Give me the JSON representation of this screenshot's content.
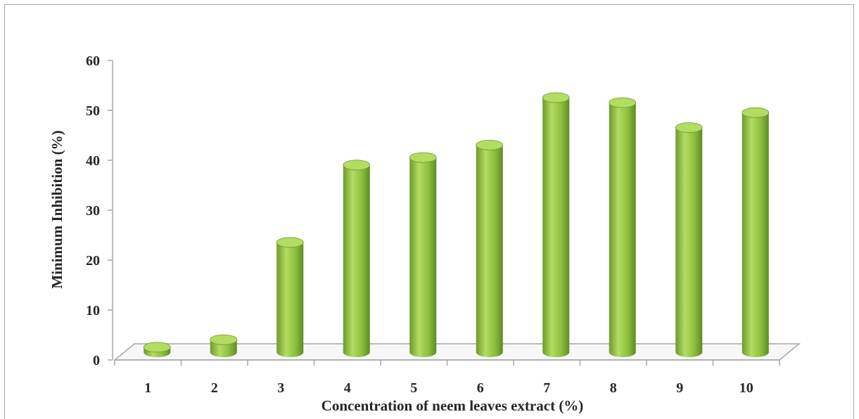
{
  "chart_data": {
    "type": "bar",
    "style": "3d-cylinder",
    "categories": [
      "1",
      "2",
      "3",
      "4",
      "5",
      "6",
      "7",
      "8",
      "9",
      "10"
    ],
    "values": [
      1,
      2.5,
      22,
      37.5,
      39,
      41.5,
      51,
      50,
      45,
      48
    ],
    "xlabel": "Concentration of neem leaves extract (%)",
    "ylabel": "Minimum Inhibition (%)",
    "ylim": [
      0,
      60
    ],
    "yticks": [
      "0",
      "10",
      "20",
      "30",
      "40",
      "50",
      "60"
    ],
    "grid": false,
    "legend": "none",
    "colors": {
      "bar": "#8cbf3f",
      "bar_light": "#b3dc62",
      "bar_dark": "#6e9a2c",
      "axis": "#a6a6a6",
      "text": "#262626"
    }
  }
}
